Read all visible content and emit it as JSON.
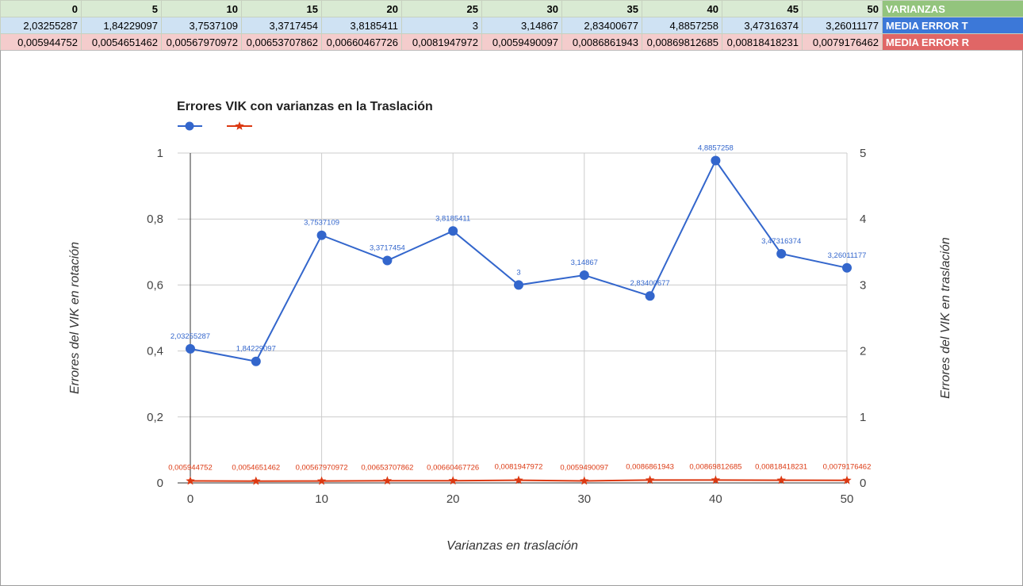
{
  "table": {
    "varianzas_label": "VARIANZAS",
    "media_t_label": "MEDIA ERROR T",
    "media_r_label": "MEDIA ERROR R",
    "varianzas": [
      "0",
      "5",
      "10",
      "15",
      "20",
      "25",
      "30",
      "35",
      "40",
      "45",
      "50"
    ],
    "media_t": [
      "2,03255287",
      "1,84229097",
      "3,7537109",
      "3,3717454",
      "3,8185411",
      "3",
      "3,14867",
      "2,83400677",
      "4,8857258",
      "3,47316374",
      "3,26011177"
    ],
    "media_r": [
      "0,005944752",
      "0,0054651462",
      "0,00567970972",
      "0,00653707862",
      "0,00660467726",
      "0,0081947972",
      "0,0059490097",
      "0,0086861943",
      "0,00869812685",
      "0,00818418231",
      "0,0079176462"
    ]
  },
  "colors": {
    "series_t": "#3366cc",
    "series_r": "#dc3912",
    "grid": "#cccccc"
  },
  "chart_data": {
    "type": "line",
    "title": "Errores VIK con varianzas en la Traslación",
    "xlabel": "Varianzas en traslación",
    "ylabel_left": "Errores del VIK en rotación",
    "ylabel_right": "Errores del VIK en traslación",
    "x": [
      0,
      5,
      10,
      15,
      20,
      25,
      30,
      35,
      40,
      45,
      50
    ],
    "xticks": [
      0,
      10,
      20,
      30,
      40,
      50
    ],
    "xlim": [
      0,
      50
    ],
    "ylim_left": [
      0,
      1
    ],
    "ylim_right": [
      0,
      5
    ],
    "yticks_left": [
      "0",
      "0,2",
      "0,4",
      "0,6",
      "0,8",
      "1"
    ],
    "yticks_right": [
      "0",
      "1",
      "2",
      "3",
      "4",
      "5"
    ],
    "grid": true,
    "legend": "top-left",
    "series": [
      {
        "axis": "right",
        "marker": "circle",
        "color": "#3366cc",
        "values": [
          2.03255287,
          1.84229097,
          3.7537109,
          3.3717454,
          3.8185411,
          3,
          3.14867,
          2.83400677,
          4.8857258,
          3.47316374,
          3.26011177
        ],
        "labels": [
          "2,03255287",
          "1,84229097",
          "3,7537109",
          "3,3717454",
          "3,8185411",
          "3",
          "3,14867",
          "2,83400677",
          "4,8857258",
          "3,47316374",
          "3,26011177"
        ]
      },
      {
        "axis": "left",
        "marker": "star",
        "color": "#dc3912",
        "values": [
          0.005944752,
          0.0054651462,
          0.00567970972,
          0.00653707862,
          0.00660467726,
          0.0081947972,
          0.0059490097,
          0.0086861943,
          0.00869812685,
          0.00818418231,
          0.0079176462
        ],
        "labels": [
          "0,005944752",
          "0,0054651462",
          "0,00567970972",
          "0,00653707862",
          "0,00660467726",
          "0,0081947972",
          "0,0059490097",
          "0,0086861943",
          "0,00869812685",
          "0,00818418231",
          "0,0079176462"
        ]
      }
    ]
  }
}
